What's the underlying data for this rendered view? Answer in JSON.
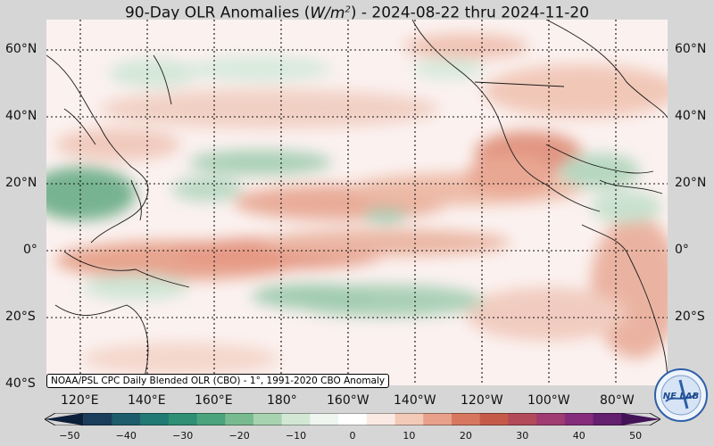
{
  "title": {
    "prefix": "90-Day OLR Anomalies (",
    "unit_W": "W",
    "unit_m": "/m",
    "unit_exp": "2",
    "suffix": ") - 2024-08-22 thru 2024-11-20"
  },
  "latitude_labels": [
    "60°N",
    "40°N",
    "20°N",
    "0°",
    "20°S",
    "40°S"
  ],
  "longitude_labels": [
    "120°E",
    "140°E",
    "160°E",
    "180°",
    "160°W",
    "140°W",
    "120°W",
    "100°W",
    "80°W"
  ],
  "source_note": "NOAA/PSL CPC Daily Blended OLR (CBO) - 1°, 1991-2020 CBO Anomaly",
  "colorbar": {
    "ticks": [
      "−50",
      "−40",
      "−30",
      "−20",
      "−10",
      "0",
      "10",
      "20",
      "30",
      "40",
      "50"
    ],
    "colors": [
      "#0b1f3a",
      "#1b3d5c",
      "#1d5d6b",
      "#217a73",
      "#2e8f74",
      "#4aa37d",
      "#78bb91",
      "#a8d3b1",
      "#d2e8d5",
      "#eef6ef",
      "#ffffff",
      "#fbe9e3",
      "#f3c9b8",
      "#e8a08a",
      "#d8775f",
      "#c55a49",
      "#b24a5a",
      "#a03c72",
      "#852c7c",
      "#641f6e",
      "#431358"
    ]
  },
  "logo": {
    "text": "NE LAB",
    "icon": "noaa-psl-logo-icon"
  }
}
